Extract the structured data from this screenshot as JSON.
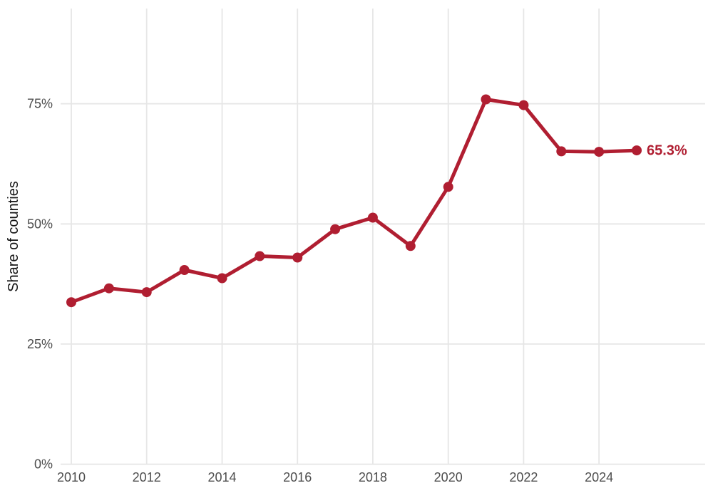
{
  "chart_data": {
    "type": "line",
    "title": "",
    "xlabel": "",
    "ylabel": "Share of counties",
    "x": [
      2010,
      2011,
      2012,
      2013,
      2014,
      2015,
      2016,
      2017,
      2018,
      2019,
      2020,
      2021,
      2022,
      2023,
      2024,
      2025
    ],
    "values": [
      33.7,
      36.6,
      35.8,
      40.4,
      38.7,
      43.3,
      43.0,
      48.9,
      51.3,
      45.4,
      57.7,
      75.9,
      74.7,
      65.1,
      65.0,
      65.3
    ],
    "end_label": "65.3%",
    "x_tick_years": [
      2010,
      2012,
      2014,
      2016,
      2018,
      2020,
      2022,
      2024
    ],
    "y_tick_values": [
      0,
      25,
      50,
      75
    ],
    "y_tick_labels": [
      "0%",
      "25%",
      "50%",
      "75%"
    ],
    "ylim": [
      0,
      94.8
    ],
    "xlim": [
      2009.72,
      2026.81
    ],
    "grid": true,
    "legend_position": "none",
    "colors": {
      "line": "#B01E31",
      "point": "#B01E31",
      "end_label": "#B01E31",
      "grid": "#E6E6E6",
      "tick_label": "#4D4D4D",
      "axis_title": "#151515",
      "background": "#FFFFFF"
    }
  }
}
